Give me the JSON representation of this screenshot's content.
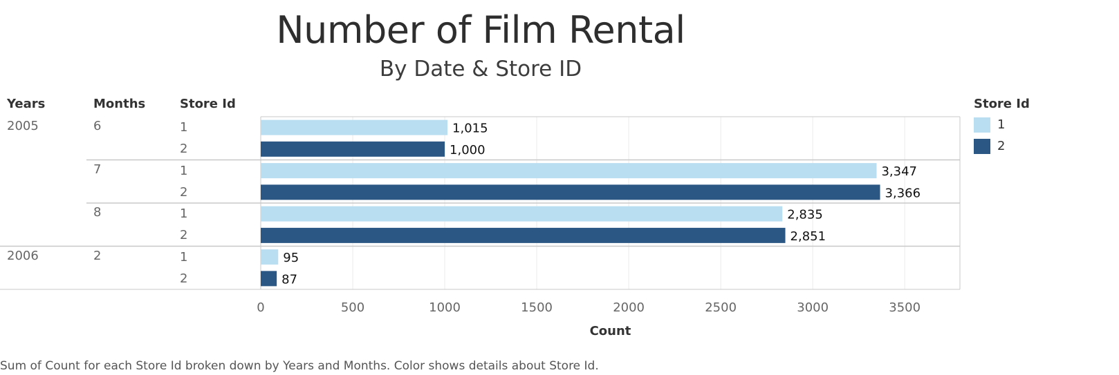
{
  "header": {
    "title": "Number of Film Rental",
    "subtitle": "By Date & Store ID"
  },
  "columns": {
    "years": "Years",
    "months": "Months",
    "store_id": "Store Id"
  },
  "legend": {
    "title": "Store Id",
    "items": [
      {
        "label": "1",
        "color": "#b9ddf1"
      },
      {
        "label": "2",
        "color": "#2a5783"
      }
    ]
  },
  "caption": "Sum of Count for each Store Id broken down by Years and Months.  Color shows details about Store Id.",
  "chart_data": {
    "type": "bar",
    "orientation": "horizontal",
    "xlabel": "Count",
    "xlim": [
      0,
      3800
    ],
    "x_ticks": [
      "0",
      "500",
      "1000",
      "1500",
      "2000",
      "2500",
      "3000",
      "3500"
    ],
    "grid": true,
    "legend_position": "right",
    "rows": [
      {
        "year": "2005",
        "month": "6",
        "store": "1",
        "value": 1015,
        "label": "1,015"
      },
      {
        "year": "2005",
        "month": "6",
        "store": "2",
        "value": 1000,
        "label": "1,000"
      },
      {
        "year": "2005",
        "month": "7",
        "store": "1",
        "value": 3347,
        "label": "3,347"
      },
      {
        "year": "2005",
        "month": "7",
        "store": "2",
        "value": 3366,
        "label": "3,366"
      },
      {
        "year": "2005",
        "month": "8",
        "store": "1",
        "value": 2835,
        "label": "2,835"
      },
      {
        "year": "2005",
        "month": "8",
        "store": "2",
        "value": 2851,
        "label": "2,851"
      },
      {
        "year": "2006",
        "month": "2",
        "store": "1",
        "value": 95,
        "label": "95"
      },
      {
        "year": "2006",
        "month": "2",
        "store": "2",
        "value": 87,
        "label": "87"
      }
    ]
  }
}
